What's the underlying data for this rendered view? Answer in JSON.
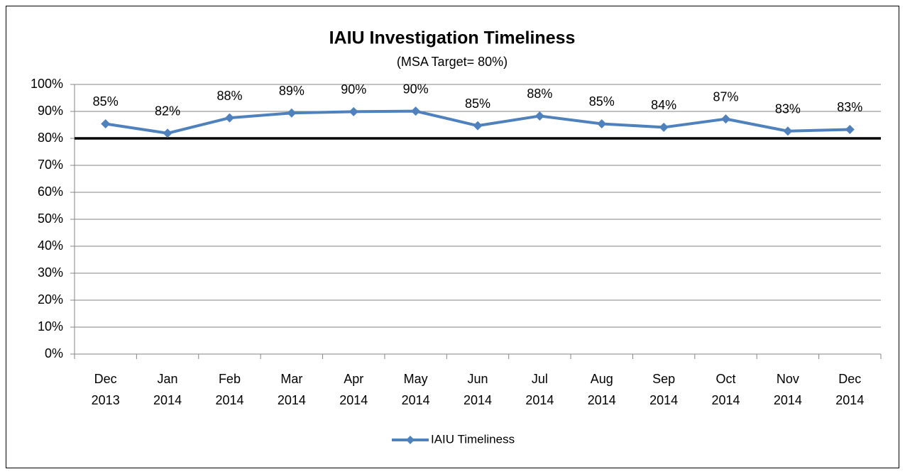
{
  "chart_data": {
    "type": "line",
    "title": "IAIU Investigation Timeliness",
    "subtitle": "(MSA Target= 80%)",
    "categories": [
      "Dec 2013",
      "Jan 2014",
      "Feb 2014",
      "Mar 2014",
      "Apr 2014",
      "May 2014",
      "Jun 2014",
      "Jul 2014",
      "Aug 2014",
      "Sep 2014",
      "Oct 2014",
      "Nov 2014",
      "Dec 2014"
    ],
    "series": [
      {
        "name": "IAIU Timeliness",
        "color": "#4f81bd",
        "values": [
          85.4,
          81.9,
          87.6,
          89.4,
          89.9,
          90.1,
          84.7,
          88.3,
          85.4,
          84.1,
          87.2,
          82.7,
          83.3
        ],
        "value_labels": [
          "85%",
          "82%",
          "88%",
          "89%",
          "90%",
          "90%",
          "85%",
          "88%",
          "85%",
          "84%",
          "87%",
          "83%",
          "83%"
        ]
      }
    ],
    "target": 80,
    "target_color": "#000000",
    "ylim": [
      0,
      100
    ],
    "yticks": [
      {
        "value": 0,
        "label": "0%"
      },
      {
        "value": 10,
        "label": "10%"
      },
      {
        "value": 20,
        "label": "20%"
      },
      {
        "value": 30,
        "label": "30%"
      },
      {
        "value": 40,
        "label": "40%"
      },
      {
        "value": 50,
        "label": "50%"
      },
      {
        "value": 60,
        "label": "60%"
      },
      {
        "value": 70,
        "label": "70%"
      },
      {
        "value": 80,
        "label": "80%"
      },
      {
        "value": 90,
        "label": "90%"
      },
      {
        "value": 100,
        "label": "100%"
      }
    ],
    "grid": true,
    "legend": "bottom"
  }
}
